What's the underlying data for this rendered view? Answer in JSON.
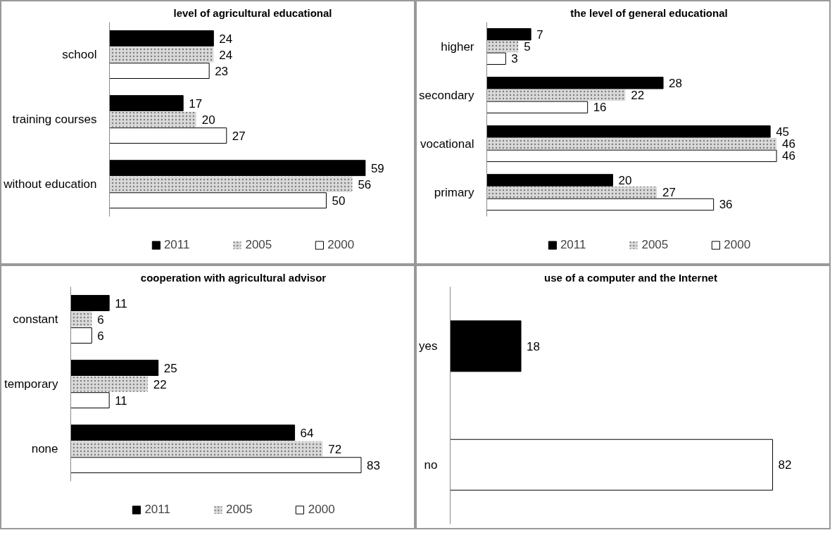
{
  "chart_data": [
    {
      "type": "bar",
      "orientation": "horizontal",
      "title": "level of agricultural educational",
      "categories": [
        "school",
        "training courses",
        "without education"
      ],
      "series": [
        {
          "name": "2011",
          "color": "#000000",
          "values": [
            24,
            17,
            59
          ]
        },
        {
          "name": "2005",
          "color": "#d9d9d9",
          "values": [
            24,
            20,
            56
          ]
        },
        {
          "name": "2000",
          "color": "#ffffff",
          "values": [
            23,
            27,
            50
          ]
        }
      ],
      "data_labels": true,
      "legend": "bottom",
      "tick_labels": "y",
      "grid": false
    },
    {
      "type": "bar",
      "orientation": "horizontal",
      "title": "the level of general educational",
      "categories": [
        "higher",
        "secondary",
        "vocational",
        "primary"
      ],
      "series": [
        {
          "name": "2011",
          "color": "#000000",
          "values": [
            7,
            28,
            45,
            20
          ]
        },
        {
          "name": "2005",
          "color": "#d9d9d9",
          "values": [
            5,
            22,
            46,
            27
          ]
        },
        {
          "name": "2000",
          "color": "#ffffff",
          "values": [
            3,
            16,
            46,
            36
          ]
        }
      ],
      "data_labels": true,
      "legend": "bottom",
      "tick_labels": "y",
      "grid": false
    },
    {
      "type": "bar",
      "orientation": "horizontal",
      "title": "cooperation with agricultural advisor",
      "categories": [
        "constant",
        "temporary",
        "none"
      ],
      "series": [
        {
          "name": "2011",
          "color": "#000000",
          "values": [
            11,
            25,
            64
          ]
        },
        {
          "name": "2005",
          "color": "#d9d9d9",
          "values": [
            6,
            22,
            72
          ]
        },
        {
          "name": "2000",
          "color": "#ffffff",
          "values": [
            6,
            11,
            83
          ]
        }
      ],
      "data_labels": true,
      "legend": "bottom",
      "tick_labels": "y",
      "grid": false
    },
    {
      "type": "bar",
      "orientation": "horizontal",
      "title": "use of a computer and the Internet",
      "categories": [
        "yes",
        "no"
      ],
      "values": [
        18,
        82
      ],
      "colors": [
        "#000000",
        "#ffffff"
      ],
      "data_labels": true,
      "legend": false,
      "tick_labels": "y",
      "grid": false
    }
  ]
}
